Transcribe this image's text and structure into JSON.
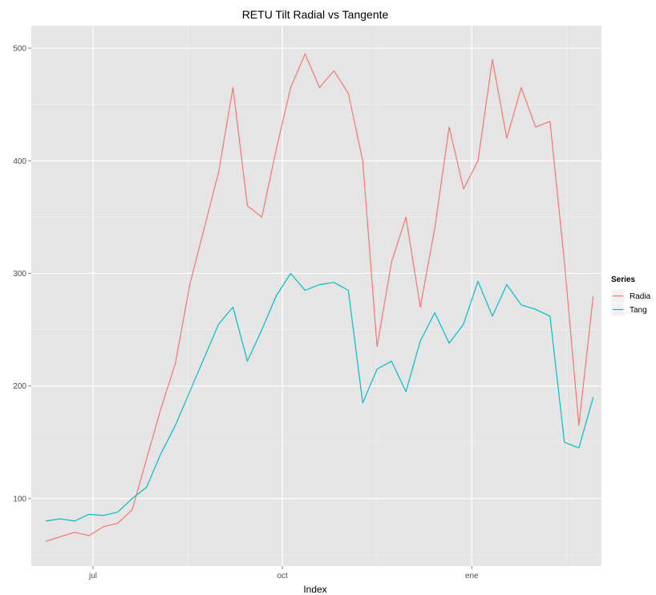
{
  "chart_data": {
    "type": "line",
    "title": "RETU Tilt Radial vs Tangente",
    "xlabel": "Index",
    "ylabel": "",
    "x_tick_labels": [
      "jul",
      "oct",
      "ene"
    ],
    "y_tick_labels": [
      "100",
      "200",
      "300",
      "400",
      "500"
    ],
    "ylim": [
      40,
      520
    ],
    "grid": true,
    "legend_position": "right",
    "legend_title": "Series",
    "x_range": [
      "2014-06-01",
      "2015-03-05"
    ],
    "x_ticks": [
      "2014-07-01",
      "2014-10-01",
      "2015-01-01"
    ],
    "x": [
      "2014-06-08",
      "2014-06-15",
      "2014-06-22",
      "2014-06-29",
      "2014-07-06",
      "2014-07-13",
      "2014-07-20",
      "2014-07-27",
      "2014-08-03",
      "2014-08-10",
      "2014-08-17",
      "2014-08-24",
      "2014-08-31",
      "2014-09-07",
      "2014-09-14",
      "2014-09-21",
      "2014-09-28",
      "2014-10-05",
      "2014-10-12",
      "2014-10-19",
      "2014-10-26",
      "2014-11-02",
      "2014-11-09",
      "2014-11-16",
      "2014-11-23",
      "2014-11-30",
      "2014-12-07",
      "2014-12-14",
      "2014-12-21",
      "2014-12-28",
      "2015-01-04",
      "2015-01-11",
      "2015-01-18",
      "2015-01-25",
      "2015-02-01",
      "2015-02-08",
      "2015-02-15",
      "2015-02-22",
      "2015-03-01"
    ],
    "series": [
      {
        "name": "Radia",
        "color": "#F8766D",
        "values": [
          62,
          66,
          70,
          67,
          75,
          78,
          90,
          135,
          180,
          220,
          290,
          340,
          390,
          465,
          360,
          350,
          410,
          465,
          495,
          465,
          480,
          460,
          400,
          235,
          310,
          350,
          270,
          340,
          430,
          375,
          400,
          490,
          420,
          465,
          430,
          435,
          310,
          165,
          280
        ]
      },
      {
        "name": "Tang",
        "color": "#00BFC4",
        "values": [
          80,
          82,
          80,
          86,
          85,
          88,
          100,
          110,
          140,
          165,
          195,
          225,
          255,
          270,
          222,
          250,
          280,
          300,
          285,
          290,
          292,
          285,
          185,
          215,
          222,
          195,
          240,
          265,
          238,
          255,
          293,
          262,
          290,
          272,
          268,
          262,
          150,
          145,
          190
        ]
      }
    ]
  }
}
